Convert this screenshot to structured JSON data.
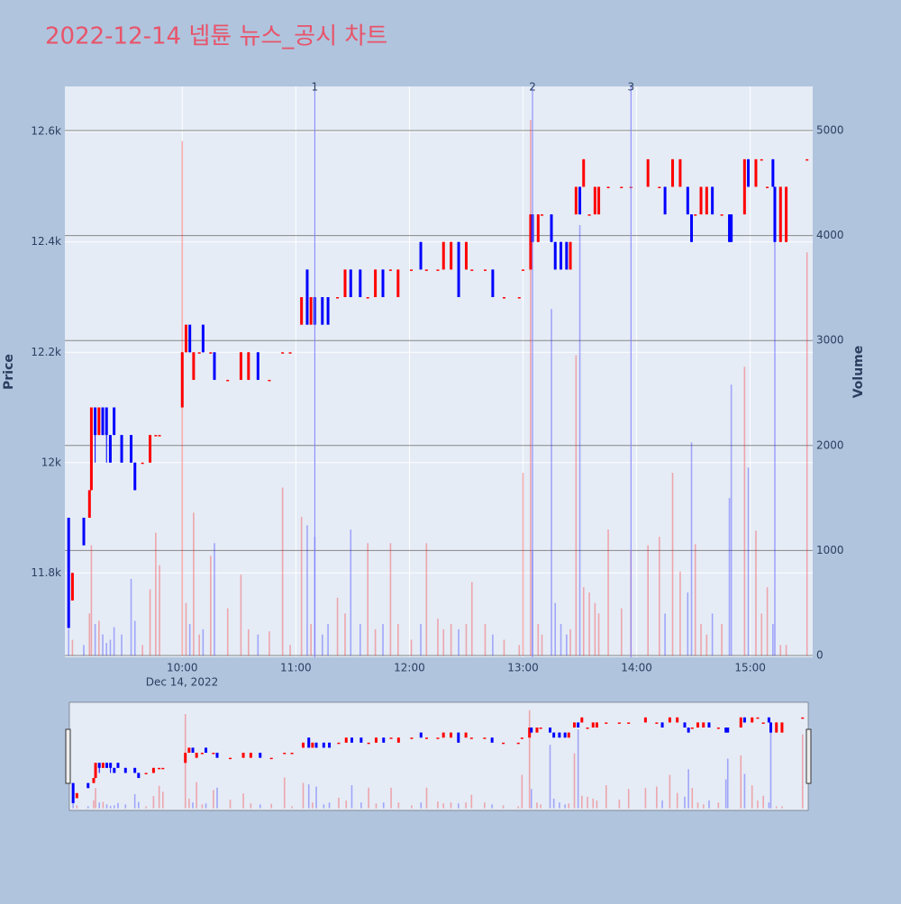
{
  "chart_data": {
    "type": "candlestick",
    "title": "2022-12-14 넵튠 뉴스_공시 차트",
    "y_label": "Price",
    "y2_label": "Volume",
    "x_date_label": "Dec 14, 2022",
    "increasing_color": "#ff0000",
    "decreasing_color": "#0000ff",
    "annotation_color": "#8080ff",
    "grid": true,
    "rangeslider": true,
    "xlim": [
      "2022-12-14 08:58",
      "2022-12-14 15:33"
    ],
    "xticks": [
      {
        "value": "2022-12-14 10:00",
        "label": "10:00"
      },
      {
        "value": "2022-12-14 11:00",
        "label": "11:00"
      },
      {
        "value": "2022-12-14 12:00",
        "label": "12:00"
      },
      {
        "value": "2022-12-14 13:00",
        "label": "13:00"
      },
      {
        "value": "2022-12-14 14:00",
        "label": "14:00"
      },
      {
        "value": "2022-12-14 15:00",
        "label": "15:00"
      }
    ],
    "ylim": [
      11647,
      12682
    ],
    "yticks": [
      {
        "value": 11800,
        "label": "11.8k"
      },
      {
        "value": 12000,
        "label": "12k"
      },
      {
        "value": 12200,
        "label": "12.2k"
      },
      {
        "value": 12400,
        "label": "12.4k"
      },
      {
        "value": 12600,
        "label": "12.6k"
      }
    ],
    "y2lim": [
      -17,
      5420
    ],
    "y2ticks": [
      0,
      1000,
      2000,
      3000,
      4000,
      5000
    ],
    "annotations": [
      {
        "x": "2022-12-14 11:10",
        "label": "1"
      },
      {
        "x": "2022-12-14 13:05",
        "label": "2"
      },
      {
        "x": "2022-12-14 13:57",
        "label": "3"
      }
    ],
    "x": [
      "2022-12-14 09:00",
      "2022-12-14 09:02",
      "2022-12-14 09:08",
      "2022-12-14 09:11",
      "2022-12-14 09:12",
      "2022-12-14 09:14",
      "2022-12-14 09:16",
      "2022-12-14 09:18",
      "2022-12-14 09:20",
      "2022-12-14 09:22",
      "2022-12-14 09:24",
      "2022-12-14 09:28",
      "2022-12-14 09:33",
      "2022-12-14 09:35",
      "2022-12-14 09:39",
      "2022-12-14 09:43",
      "2022-12-14 09:46",
      "2022-12-14 09:48",
      "2022-12-14 10:00",
      "2022-12-14 10:02",
      "2022-12-14 10:04",
      "2022-12-14 10:06",
      "2022-12-14 10:09",
      "2022-12-14 10:11",
      "2022-12-14 10:15",
      "2022-12-14 10:17",
      "2022-12-14 10:24",
      "2022-12-14 10:31",
      "2022-12-14 10:35",
      "2022-12-14 10:40",
      "2022-12-14 10:46",
      "2022-12-14 10:53",
      "2022-12-14 10:57",
      "2022-12-14 11:03",
      "2022-12-14 11:06",
      "2022-12-14 11:08",
      "2022-12-14 11:10",
      "2022-12-14 11:14",
      "2022-12-14 11:17",
      "2022-12-14 11:22",
      "2022-12-14 11:26",
      "2022-12-14 11:29",
      "2022-12-14 11:34",
      "2022-12-14 11:38",
      "2022-12-14 11:42",
      "2022-12-14 11:46",
      "2022-12-14 11:50",
      "2022-12-14 11:54",
      "2022-12-14 12:01",
      "2022-12-14 12:06",
      "2022-12-14 12:09",
      "2022-12-14 12:15",
      "2022-12-14 12:18",
      "2022-12-14 12:22",
      "2022-12-14 12:26",
      "2022-12-14 12:30",
      "2022-12-14 12:33",
      "2022-12-14 12:40",
      "2022-12-14 12:44",
      "2022-12-14 12:50",
      "2022-12-14 12:58",
      "2022-12-14 13:00",
      "2022-12-14 13:04",
      "2022-12-14 13:05",
      "2022-12-14 13:08",
      "2022-12-14 13:10",
      "2022-12-14 13:15",
      "2022-12-14 13:17",
      "2022-12-14 13:20",
      "2022-12-14 13:23",
      "2022-12-14 13:25",
      "2022-12-14 13:28",
      "2022-12-14 13:30",
      "2022-12-14 13:32",
      "2022-12-14 13:35",
      "2022-12-14 13:38",
      "2022-12-14 13:40",
      "2022-12-14 13:45",
      "2022-12-14 13:52",
      "2022-12-14 13:57",
      "2022-12-14 14:06",
      "2022-12-14 14:12",
      "2022-12-14 14:15",
      "2022-12-14 14:19",
      "2022-12-14 14:23",
      "2022-12-14 14:27",
      "2022-12-14 14:29",
      "2022-12-14 14:31",
      "2022-12-14 14:34",
      "2022-12-14 14:37",
      "2022-12-14 14:40",
      "2022-12-14 14:45",
      "2022-12-14 14:49",
      "2022-12-14 14:50",
      "2022-12-14 14:57",
      "2022-12-14 14:59",
      "2022-12-14 15:03",
      "2022-12-14 15:06",
      "2022-12-14 15:09",
      "2022-12-14 15:12",
      "2022-12-14 15:13",
      "2022-12-14 15:16",
      "2022-12-14 15:19",
      "2022-12-14 15:30"
    ],
    "open": [
      11900,
      11750,
      11900,
      11900,
      11950,
      12100,
      12050,
      12100,
      12100,
      12050,
      12100,
      12050,
      12050,
      12000,
      12000,
      12000,
      12050,
      12050,
      12100,
      12200,
      12250,
      12150,
      12200,
      12250,
      12200,
      12200,
      12150,
      12150,
      12150,
      12200,
      12150,
      12200,
      12200,
      12250,
      12350,
      12250,
      12300,
      12300,
      12300,
      12300,
      12300,
      12350,
      12350,
      12300,
      12300,
      12350,
      12350,
      12300,
      12350,
      12400,
      12350,
      12350,
      12350,
      12350,
      12400,
      12350,
      12350,
      12350,
      12350,
      12300,
      12300,
      12350,
      12350,
      12450,
      12400,
      12450,
      12450,
      12400,
      12400,
      12400,
      12350,
      12450,
      12500,
      12500,
      12450,
      12450,
      12450,
      12500,
      12500,
      12500,
      12500,
      12500,
      12500,
      12500,
      12500,
      12500,
      12450,
      12450,
      12450,
      12450,
      12500,
      12450,
      12450,
      12450,
      12450,
      12550,
      12500,
      12550,
      12500,
      12550,
      12500,
      12400,
      12400,
      12550
    ],
    "high": [
      11900,
      11800,
      11900,
      11950,
      12100,
      12100,
      12100,
      12100,
      12100,
      12050,
      12100,
      12050,
      12050,
      12000,
      12000,
      12050,
      12050,
      12050,
      12200,
      12250,
      12250,
      12200,
      12200,
      12250,
      12200,
      12200,
      12150,
      12200,
      12200,
      12200,
      12150,
      12200,
      12200,
      12300,
      12350,
      12300,
      12300,
      12300,
      12300,
      12300,
      12350,
      12350,
      12350,
      12300,
      12350,
      12350,
      12350,
      12350,
      12350,
      12400,
      12350,
      12350,
      12400,
      12400,
      12400,
      12400,
      12350,
      12350,
      12350,
      12300,
      12300,
      12350,
      12450,
      12450,
      12450,
      12450,
      12450,
      12400,
      12400,
      12400,
      12400,
      12500,
      12500,
      12550,
      12450,
      12500,
      12500,
      12500,
      12500,
      12500,
      12550,
      12500,
      12500,
      12550,
      12550,
      12500,
      12450,
      12450,
      12500,
      12500,
      12500,
      12450,
      12450,
      12450,
      12550,
      12550,
      12550,
      12550,
      12500,
      12550,
      12500,
      12500,
      12500,
      12550
    ],
    "low": [
      11700,
      11750,
      11850,
      11900,
      11950,
      12000,
      12050,
      12050,
      12000,
      12000,
      12050,
      12000,
      12000,
      11950,
      12000,
      12000,
      12050,
      12050,
      12100,
      12200,
      12200,
      12150,
      12200,
      12200,
      12200,
      12150,
      12150,
      12150,
      12150,
      12150,
      12150,
      12200,
      12200,
      12250,
      12250,
      12250,
      12250,
      12250,
      12250,
      12300,
      12300,
      12300,
      12300,
      12300,
      12300,
      12300,
      12350,
      12300,
      12350,
      12350,
      12350,
      12350,
      12350,
      12350,
      12300,
      12350,
      12350,
      12350,
      12300,
      12300,
      12300,
      12350,
      12350,
      12400,
      12400,
      12450,
      12400,
      12350,
      12350,
      12350,
      12350,
      12450,
      12450,
      12500,
      12450,
      12450,
      12450,
      12500,
      12500,
      12500,
      12500,
      12500,
      12450,
      12500,
      12500,
      12450,
      12400,
      12450,
      12450,
      12450,
      12450,
      12450,
      12400,
      12400,
      12450,
      12500,
      12500,
      12550,
      12500,
      12500,
      12400,
      12400,
      12400,
      12550
    ],
    "close": [
      11700,
      11800,
      11850,
      11950,
      12100,
      12050,
      12100,
      12050,
      12050,
      12000,
      12050,
      12000,
      12000,
      11950,
      12000,
      12050,
      12050,
      12050,
      12200,
      12250,
      12200,
      12200,
      12200,
      12200,
      12200,
      12150,
      12150,
      12200,
      12200,
      12150,
      12150,
      12200,
      12200,
      12300,
      12250,
      12300,
      12250,
      12250,
      12250,
      12300,
      12350,
      12300,
      12300,
      12300,
      12350,
      12300,
      12350,
      12350,
      12350,
      12350,
      12350,
      12350,
      12400,
      12400,
      12300,
      12400,
      12350,
      12350,
      12300,
      12300,
      12300,
      12350,
      12450,
      12400,
      12450,
      12450,
      12400,
      12350,
      12350,
      12350,
      12400,
      12500,
      12450,
      12550,
      12450,
      12500,
      12500,
      12500,
      12500,
      12500,
      12550,
      12500,
      12450,
      12550,
      12550,
      12450,
      12400,
      12450,
      12500,
      12500,
      12450,
      12450,
      12400,
      12400,
      12550,
      12500,
      12550,
      12550,
      12500,
      12500,
      12400,
      12500,
      12500,
      12550
    ],
    "volume": [
      250,
      150,
      100,
      400,
      1050,
      300,
      330,
      200,
      120,
      150,
      270,
      200,
      730,
      330,
      100,
      630,
      1170,
      860,
      4900,
      500,
      300,
      1360,
      200,
      250,
      950,
      1070,
      450,
      770,
      250,
      200,
      230,
      1600,
      100,
      1320,
      1240,
      300,
      1130,
      200,
      300,
      550,
      400,
      1200,
      300,
      1070,
      250,
      300,
      1070,
      300,
      150,
      300,
      1070,
      350,
      250,
      300,
      250,
      300,
      700,
      300,
      200,
      150,
      100,
      1740,
      5100,
      1000,
      300,
      200,
      3300,
      500,
      300,
      200,
      250,
      2860,
      4100,
      650,
      600,
      500,
      400,
      1200,
      450,
      1000,
      1050,
      1130,
      400,
      1740,
      800,
      600,
      2030,
      1060,
      300,
      200,
      400,
      300,
      1500,
      2580,
      2750,
      1790,
      1190,
      400,
      650,
      300,
      3970,
      100,
      100,
      3840
    ]
  }
}
